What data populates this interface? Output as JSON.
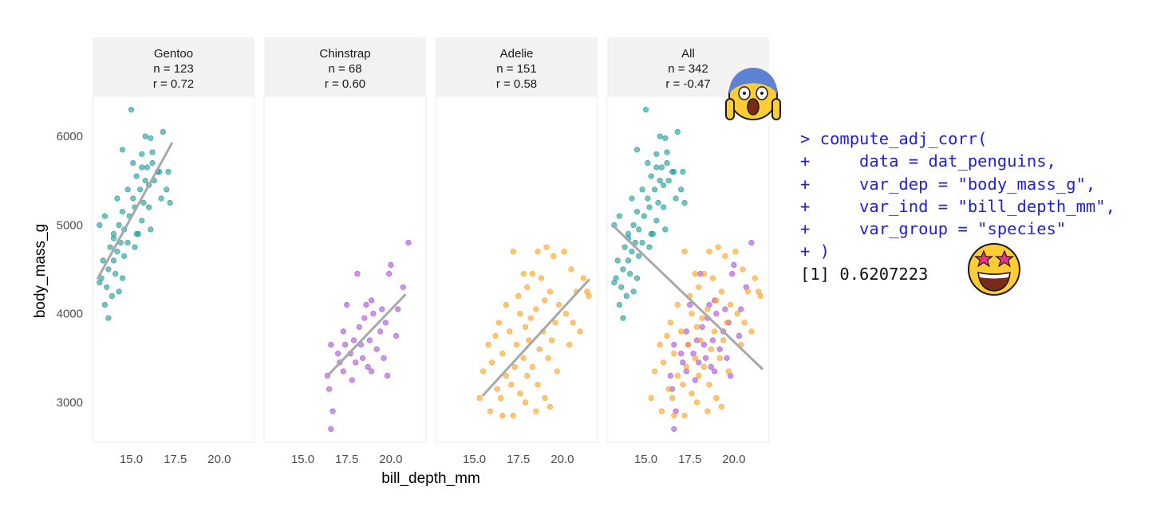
{
  "chart_data": {
    "type": "scatter",
    "xlabel": "bill_depth_mm",
    "ylabel": "body_mass_g",
    "xlim": [
      12.8,
      22.0
    ],
    "ylim": [
      2550,
      6450
    ],
    "x_ticks": [
      15.0,
      17.5,
      20.0
    ],
    "x_tick_labels": [
      "15.0",
      "17.5",
      "20.0"
    ],
    "y_ticks": [
      3000,
      4000,
      5000,
      6000
    ],
    "y_tick_labels": [
      "3000",
      "4000",
      "5000",
      "6000"
    ],
    "grid": false,
    "colors": {
      "Gentoo": "#1a9a96",
      "Chinstrap": "#a64ddb",
      "Adelie": "#ff9f1c",
      "fit_line": "#a8a8a8",
      "strip": "#f2f2f2"
    },
    "panels": [
      {
        "species": "Gentoo",
        "label": "Gentoo",
        "n_label": "n = 123",
        "r_label": "r = 0.72",
        "groups": [
          "Gentoo"
        ],
        "fit": [
          [
            13.1,
            4400
          ],
          [
            17.3,
            5920
          ]
        ]
      },
      {
        "species": "Chinstrap",
        "label": "Chinstrap",
        "n_label": "n = 68",
        "r_label": "r = 0.60",
        "groups": [
          "Chinstrap"
        ],
        "fit": [
          [
            16.5,
            3320
          ],
          [
            20.8,
            4210
          ]
        ]
      },
      {
        "species": "Adelie",
        "label": "Adelie",
        "n_label": "n = 151",
        "r_label": "r = 0.58",
        "groups": [
          "Adelie"
        ],
        "fit": [
          [
            15.5,
            3080
          ],
          [
            21.5,
            4380
          ]
        ]
      },
      {
        "species": "All",
        "label": "All",
        "n_label": "n = 342",
        "r_label": "r = -0.47",
        "groups": [
          "Gentoo",
          "Chinstrap",
          "Adelie"
        ],
        "fit": [
          [
            13.2,
            4980
          ],
          [
            21.6,
            3380
          ]
        ]
      }
    ],
    "series": [
      {
        "name": "Gentoo",
        "points": [
          [
            15.0,
            6300
          ],
          [
            16.8,
            6050
          ],
          [
            16.1,
            5980
          ],
          [
            15.8,
            6000
          ],
          [
            14.5,
            5850
          ],
          [
            15.6,
            5800
          ],
          [
            16.2,
            5820
          ],
          [
            15.1,
            5700
          ],
          [
            15.9,
            5650
          ],
          [
            16.5,
            5600
          ],
          [
            17.1,
            5600
          ],
          [
            15.3,
            5550
          ],
          [
            15.8,
            5500
          ],
          [
            16.0,
            5450
          ],
          [
            14.8,
            5400
          ],
          [
            15.5,
            5400
          ],
          [
            16.3,
            5500
          ],
          [
            17.0,
            5400
          ],
          [
            14.2,
            5300
          ],
          [
            15.1,
            5300
          ],
          [
            16.7,
            5300
          ],
          [
            17.2,
            5250
          ],
          [
            15.7,
            5250
          ],
          [
            14.5,
            5150
          ],
          [
            15.2,
            5200
          ],
          [
            14.9,
            5100
          ],
          [
            16.0,
            5200
          ],
          [
            15.6,
            5050
          ],
          [
            13.5,
            5100
          ],
          [
            14.3,
            5000
          ],
          [
            14.6,
            4950
          ],
          [
            15.3,
            4900
          ],
          [
            16.1,
            4950
          ],
          [
            13.2,
            5000
          ],
          [
            14.0,
            4850
          ],
          [
            14.4,
            4800
          ],
          [
            14.8,
            4800
          ],
          [
            15.2,
            4750
          ],
          [
            13.8,
            4750
          ],
          [
            14.2,
            4700
          ],
          [
            14.6,
            4650
          ],
          [
            14.0,
            4600
          ],
          [
            13.4,
            4600
          ],
          [
            13.7,
            4500
          ],
          [
            14.1,
            4450
          ],
          [
            14.5,
            4400
          ],
          [
            13.3,
            4400
          ],
          [
            13.6,
            4300
          ],
          [
            13.9,
            4200
          ],
          [
            13.5,
            4100
          ],
          [
            13.7,
            3950
          ],
          [
            14.3,
            4250
          ],
          [
            13.2,
            4350
          ],
          [
            15.4,
            4900
          ],
          [
            16.6,
            5600
          ],
          [
            14.0,
            4900
          ],
          [
            15.6,
            5650
          ],
          [
            16.2,
            5700
          ]
        ]
      },
      {
        "name": "Chinstrap",
        "points": [
          [
            21.0,
            4800
          ],
          [
            20.0,
            4550
          ],
          [
            20.7,
            4300
          ],
          [
            19.9,
            4450
          ],
          [
            18.1,
            4450
          ],
          [
            18.9,
            4150
          ],
          [
            18.6,
            4100
          ],
          [
            19.5,
            4050
          ],
          [
            20.4,
            4050
          ],
          [
            17.5,
            4100
          ],
          [
            19.0,
            4000
          ],
          [
            18.5,
            3950
          ],
          [
            19.7,
            3900
          ],
          [
            17.3,
            3800
          ],
          [
            20.3,
            3750
          ],
          [
            18.8,
            3700
          ],
          [
            17.9,
            3700
          ],
          [
            16.6,
            3650
          ],
          [
            17.4,
            3650
          ],
          [
            19.2,
            3600
          ],
          [
            18.3,
            3650
          ],
          [
            17.7,
            3550
          ],
          [
            18.4,
            3500
          ],
          [
            19.6,
            3500
          ],
          [
            17.1,
            3450
          ],
          [
            18.7,
            3400
          ],
          [
            16.4,
            3300
          ],
          [
            17.3,
            3350
          ],
          [
            18.9,
            3350
          ],
          [
            19.8,
            3300
          ],
          [
            16.5,
            3150
          ],
          [
            17.8,
            3250
          ],
          [
            16.7,
            2900
          ],
          [
            16.6,
            2700
          ],
          [
            18.2,
            3850
          ],
          [
            19.4,
            3800
          ],
          [
            17.0,
            3550
          ],
          [
            18.0,
            3450
          ]
        ]
      },
      {
        "name": "Adelie",
        "points": [
          [
            19.1,
            4750
          ],
          [
            18.6,
            4700
          ],
          [
            17.2,
            4700
          ],
          [
            19.5,
            4650
          ],
          [
            20.1,
            4700
          ],
          [
            18.3,
            4450
          ],
          [
            20.5,
            4500
          ],
          [
            17.8,
            4450
          ],
          [
            18.8,
            4400
          ],
          [
            21.2,
            4400
          ],
          [
            18.0,
            4300
          ],
          [
            19.3,
            4250
          ],
          [
            20.8,
            4250
          ],
          [
            17.5,
            4200
          ],
          [
            19.0,
            4150
          ],
          [
            21.5,
            4200
          ],
          [
            16.8,
            4100
          ],
          [
            18.5,
            4050
          ],
          [
            19.8,
            4100
          ],
          [
            17.6,
            4000
          ],
          [
            20.2,
            4000
          ],
          [
            18.2,
            3950
          ],
          [
            16.4,
            3900
          ],
          [
            19.6,
            3900
          ],
          [
            17.9,
            3850
          ],
          [
            17.0,
            3800
          ],
          [
            18.9,
            3800
          ],
          [
            21.0,
            3800
          ],
          [
            16.2,
            3750
          ],
          [
            18.1,
            3700
          ],
          [
            19.4,
            3700
          ],
          [
            17.4,
            3650
          ],
          [
            15.8,
            3650
          ],
          [
            20.4,
            3650
          ],
          [
            18.7,
            3600
          ],
          [
            16.6,
            3550
          ],
          [
            17.8,
            3500
          ],
          [
            19.2,
            3500
          ],
          [
            16.0,
            3450
          ],
          [
            17.3,
            3400
          ],
          [
            18.3,
            3400
          ],
          [
            19.7,
            3350
          ],
          [
            15.5,
            3350
          ],
          [
            16.8,
            3300
          ],
          [
            18.0,
            3300
          ],
          [
            17.1,
            3200
          ],
          [
            18.6,
            3200
          ],
          [
            16.3,
            3150
          ],
          [
            15.3,
            3050
          ],
          [
            17.6,
            3100
          ],
          [
            19.0,
            3050
          ],
          [
            16.5,
            3050
          ],
          [
            17.9,
            3000
          ],
          [
            15.9,
            2900
          ],
          [
            16.6,
            2850
          ],
          [
            18.5,
            2900
          ],
          [
            19.3,
            2950
          ],
          [
            17.2,
            2850
          ],
          [
            20.6,
            3900
          ],
          [
            21.4,
            4250
          ]
        ]
      }
    ]
  },
  "console": {
    "lines": [
      {
        "kind": "cmd",
        "text": "> compute_adj_corr("
      },
      {
        "kind": "cmd",
        "text": "+     data = dat_penguins,"
      },
      {
        "kind": "cmd",
        "text": "+     var_dep = \"body_mass_g\","
      },
      {
        "kind": "cmd",
        "text": "+     var_ind = \"bill_depth_mm\","
      },
      {
        "kind": "cmd",
        "text": "+     var_group = \"species\""
      },
      {
        "kind": "cmd",
        "text": "+ )"
      },
      {
        "kind": "out",
        "text": "[1] 0.6207223"
      }
    ]
  },
  "emojis": [
    {
      "icon": "face-screaming-in-fear-icon",
      "attached_to": "All"
    },
    {
      "icon": "star-struck-face-icon",
      "attached_to": "console-result"
    }
  ]
}
